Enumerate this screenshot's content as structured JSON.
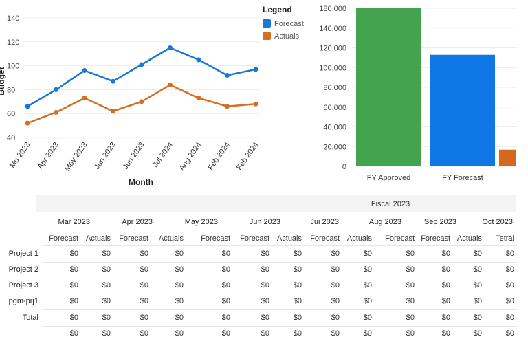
{
  "line_chart_panel": {
    "legend_title": "Legend"
  },
  "chart_data": [
    {
      "type": "line",
      "ylabel": "Budget",
      "xlabel": "Month",
      "categories": [
        "Mu 2023",
        "Apr 2023",
        "Moy 2023",
        "Jun 2023",
        "Jun 2023",
        "Jul 2024",
        "Ang 2024",
        "Feb 2024",
        "Feb 2024"
      ],
      "series": [
        {
          "name": "Forecast",
          "color": "#1878d6",
          "values": [
            66,
            80,
            96,
            87,
            101,
            115,
            105,
            92,
            97
          ]
        },
        {
          "name": "Actuals",
          "color": "#d46f20",
          "values": [
            52,
            61,
            73,
            62,
            70,
            84,
            73,
            66,
            68
          ]
        }
      ],
      "yticks": [
        40,
        60,
        80,
        100,
        120,
        140
      ],
      "ylim": [
        40,
        140
      ],
      "grid": true,
      "legend_position": "top-right"
    },
    {
      "type": "bar",
      "categories": [
        "FY Approved",
        "FY Forecast",
        ""
      ],
      "values": [
        180000,
        127000,
        19000
      ],
      "colors": [
        "#43a34f",
        "#0f78e6",
        "#d2691e"
      ],
      "yticks": [
        "0",
        "20,000",
        "40,000",
        "60,000",
        "80,000",
        "100,000",
        "120,000",
        "140,000",
        "180,000"
      ],
      "ylim": [
        0,
        180000
      ],
      "grid": true
    }
  ],
  "table": {
    "group_header": "Fiscal 2023",
    "months": [
      "Mar 2023",
      "Apr 2023",
      "May 2023",
      "Jun 2023",
      "Jui 2023",
      "Aug 2023",
      "Sep 2023",
      "Oct 2023"
    ],
    "subheaders": [
      "Forecast",
      "Actuals",
      "Forecast",
      "Actuals",
      "Forecast",
      "Forecast",
      "Actuals",
      "Forecast",
      "Actuals",
      "Forecast",
      "Forecast",
      "Actuals",
      "Tetral"
    ],
    "rows": [
      {
        "label": "Project 1",
        "values": [
          "$0",
          "$0",
          "$0",
          "$0",
          "$0",
          "$0",
          "$0",
          "$0",
          "$0",
          "$0",
          "$0",
          "$0",
          "$0"
        ]
      },
      {
        "label": "Project 2",
        "values": [
          "$0",
          "$0",
          "$0",
          "$0",
          "$0",
          "$0",
          "$0",
          "$0",
          "$0",
          "$0",
          "$0",
          "$0",
          "$0"
        ]
      },
      {
        "label": "Project 3",
        "values": [
          "$0",
          "$0",
          "$0",
          "$0",
          "$0",
          "$0",
          "$0",
          "$0",
          "$0",
          "$0",
          "$0",
          "$0",
          "$0"
        ]
      },
      {
        "label": "pgm-prj1",
        "values": [
          "$0",
          "$0",
          "$0",
          "$0",
          "$0",
          "$0",
          "$0",
          "$0",
          "$0",
          "$0",
          "$0",
          "$0",
          "$0"
        ]
      },
      {
        "label": "Total",
        "values": [
          "$0",
          "$0",
          "$0",
          "$0",
          "$0",
          "$0",
          "$0",
          "$0",
          "$0",
          "$0",
          "$0",
          "$0",
          "$0"
        ]
      },
      {
        "label": "",
        "values": [
          "$0",
          "$0",
          "$0",
          "$0",
          "$0",
          "$0",
          "$0",
          "$0",
          "$0",
          "$0",
          "$0",
          "$0",
          "$0"
        ]
      }
    ]
  }
}
